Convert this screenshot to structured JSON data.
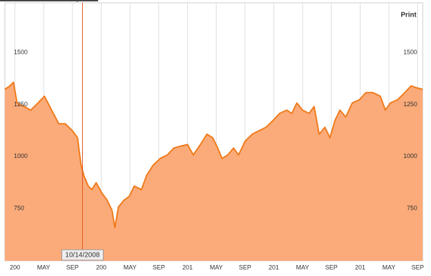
{
  "chart_data": {
    "type": "area",
    "button": "Print",
    "x": [
      -1.4,
      -0.7,
      -0.2,
      0.3,
      1.3,
      2.2,
      3.2,
      4.1,
      5.1,
      6.1,
      7.0,
      8.0,
      8.7,
      9.2,
      9.6,
      10.2,
      10.7,
      11.3,
      12.1,
      12.8,
      13.5,
      13.9,
      14.4,
      15.2,
      15.9,
      16.6,
      17.6,
      18.3,
      19.2,
      20.2,
      21.2,
      22.1,
      23.1,
      24.0,
      24.8,
      25.8,
      26.7,
      27.5,
      28.2,
      28.8,
      29.6,
      30.4,
      31.1,
      32.0,
      33.0,
      33.9,
      34.9,
      35.9,
      36.8,
      37.8,
      38.5,
      39.2,
      40.0,
      40.9,
      41.6,
      42.3,
      43.1,
      43.8,
      44.5,
      45.2,
      46.0,
      46.9,
      47.9,
      48.8,
      49.8,
      50.8,
      51.5,
      52.2,
      53.2,
      54.2,
      55.1,
      55.9,
      56.7
    ],
    "values": [
      1323,
      1340,
      1357,
      1257,
      1240,
      1223,
      1257,
      1290,
      1223,
      1157,
      1157,
      1123,
      1090,
      957,
      907,
      857,
      840,
      873,
      823,
      790,
      740,
      657,
      757,
      790,
      807,
      857,
      840,
      907,
      957,
      990,
      1007,
      1040,
      1050,
      1057,
      1007,
      1057,
      1107,
      1090,
      1040,
      990,
      1007,
      1040,
      1007,
      1073,
      1107,
      1123,
      1140,
      1173,
      1207,
      1223,
      1207,
      1257,
      1223,
      1207,
      1240,
      1107,
      1140,
      1090,
      1173,
      1223,
      1190,
      1257,
      1273,
      1307,
      1307,
      1290,
      1223,
      1257,
      1273,
      1307,
      1340,
      1330,
      1323
    ],
    "color": "#f07a1a",
    "fill": "#fbab7a",
    "xlim": [
      -1.4,
      56.7
    ],
    "xticks": [
      {
        "value": 0,
        "label": "200"
      },
      {
        "value": 4,
        "label": "MAY"
      },
      {
        "value": 8,
        "label": "SEP"
      },
      {
        "value": 12,
        "label": "200"
      },
      {
        "value": 16,
        "label": "MAY"
      },
      {
        "value": 20,
        "label": "SEP"
      },
      {
        "value": 24,
        "label": "201"
      },
      {
        "value": 28,
        "label": "MAY"
      },
      {
        "value": 32,
        "label": "SEP"
      },
      {
        "value": 36,
        "label": "201"
      },
      {
        "value": 40,
        "label": "MAY"
      },
      {
        "value": 44,
        "label": "SEP"
      },
      {
        "value": 48,
        "label": "201"
      },
      {
        "value": 52,
        "label": "MAY"
      },
      {
        "value": 56,
        "label": "SEP"
      }
    ],
    "ylim": [
      497,
      1740
    ],
    "yticks": [
      750,
      1000,
      1250,
      1500
    ],
    "grid": true,
    "marker": {
      "x": 9.4,
      "label": "10/14/2008",
      "color": "#e0501a"
    }
  }
}
